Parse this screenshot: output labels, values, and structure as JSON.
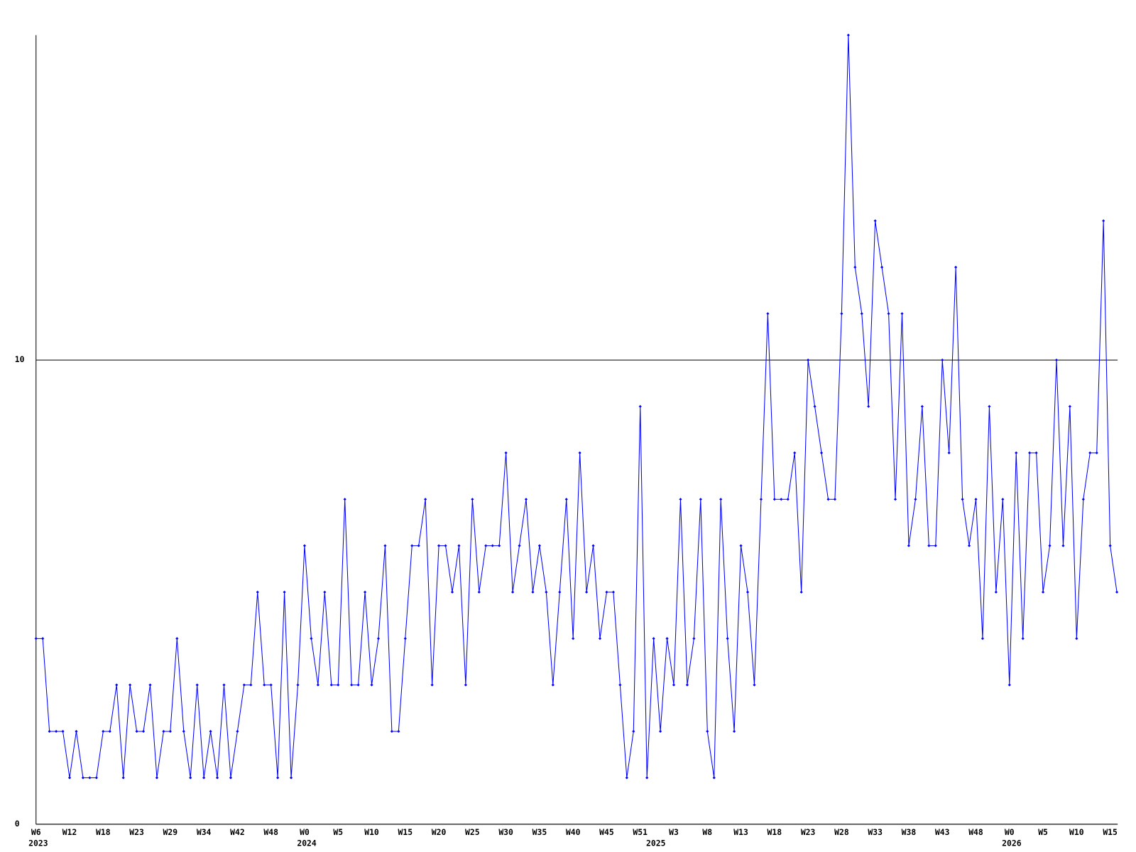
{
  "chart_data": {
    "type": "line",
    "categories": [
      "W6",
      null,
      null,
      null,
      null,
      "W12",
      null,
      null,
      null,
      null,
      "W18",
      null,
      null,
      null,
      null,
      "W23",
      null,
      null,
      null,
      null,
      "W29",
      null,
      null,
      null,
      null,
      "W34",
      null,
      null,
      null,
      null,
      "W42",
      null,
      null,
      null,
      null,
      "W48",
      null,
      null,
      null,
      null,
      "W0",
      null,
      null,
      null,
      null,
      "W5",
      null,
      null,
      null,
      null,
      "W10",
      null,
      null,
      null,
      null,
      "W15",
      null,
      null,
      null,
      null,
      "W20",
      null,
      null,
      null,
      null,
      "W25",
      null,
      null,
      null,
      null,
      "W30",
      null,
      null,
      null,
      null,
      "W35",
      null,
      null,
      null,
      null,
      "W40",
      null,
      null,
      null,
      null,
      "W45",
      null,
      null,
      null,
      null,
      "W51",
      null,
      null,
      null,
      null,
      "W3",
      null,
      null,
      null,
      null,
      "W8",
      null,
      null,
      null,
      null,
      "W13",
      null,
      null,
      null,
      null,
      "W18",
      null,
      null,
      null,
      null,
      "W23",
      null,
      null,
      null,
      null,
      "W28",
      null,
      null,
      null,
      null,
      "W33",
      null,
      null,
      null,
      null,
      "W38",
      null,
      null,
      null,
      null,
      "W43",
      null,
      null,
      null,
      null,
      "W48",
      null,
      null,
      null,
      null,
      "W0",
      null,
      null,
      null,
      null,
      "W5",
      null,
      null,
      null,
      null,
      "W10",
      null,
      null,
      null,
      null,
      "W15",
      null
    ],
    "years": [
      "2023",
      null,
      null,
      null,
      null,
      null,
      null,
      null,
      null,
      null,
      null,
      null,
      null,
      null,
      null,
      null,
      null,
      null,
      null,
      null,
      null,
      null,
      null,
      null,
      null,
      null,
      null,
      null,
      null,
      null,
      null,
      null,
      null,
      null,
      null,
      null,
      null,
      null,
      null,
      null,
      "2024",
      null,
      null,
      null,
      null,
      null,
      null,
      null,
      null,
      null,
      null,
      null,
      null,
      null,
      null,
      null,
      null,
      null,
      null,
      null,
      null,
      null,
      null,
      null,
      null,
      null,
      null,
      null,
      null,
      null,
      null,
      null,
      null,
      null,
      null,
      null,
      null,
      null,
      null,
      null,
      null,
      null,
      null,
      null,
      null,
      null,
      null,
      null,
      null,
      null,
      null,
      null,
      "2025",
      null,
      null,
      null,
      null,
      null,
      null,
      null,
      null,
      null,
      null,
      null,
      null,
      null,
      null,
      null,
      null,
      null,
      null,
      null,
      null,
      null,
      null,
      null,
      null,
      null,
      null,
      null,
      null,
      null,
      null,
      null,
      null,
      null,
      null,
      null,
      null,
      null,
      null,
      null,
      null,
      null,
      null,
      null,
      null,
      null,
      null,
      null,
      null,
      null,
      null,
      null,
      null,
      "2026",
      null,
      null,
      null,
      null,
      null,
      null,
      null,
      null,
      null,
      null,
      null,
      null,
      null,
      null,
      null,
      null
    ],
    "series": [
      {
        "color": "#0000ff",
        "values": [
          4,
          4,
          2,
          2,
          2,
          1,
          2,
          1,
          1,
          1,
          2,
          2,
          3,
          1,
          3,
          2,
          2,
          3,
          1,
          2,
          2,
          4,
          2,
          1,
          3,
          1,
          2,
          1,
          3,
          1,
          2,
          3,
          3,
          5,
          3,
          3,
          1,
          5,
          1,
          3,
          6,
          4,
          3,
          5,
          3,
          3,
          7,
          3,
          3,
          5,
          3,
          4,
          6,
          2,
          2,
          4,
          6,
          6,
          7,
          3,
          6,
          6,
          5,
          6,
          3,
          7,
          5,
          6,
          6,
          6,
          8,
          5,
          6,
          7,
          5,
          6,
          5,
          3,
          5,
          7,
          4,
          8,
          5,
          6,
          4,
          5,
          5,
          3,
          1,
          2,
          9,
          1,
          4,
          2,
          4,
          3,
          7,
          3,
          4,
          7,
          2,
          1,
          7,
          4,
          2,
          6,
          5,
          3,
          7,
          11,
          7,
          7,
          7,
          8,
          5,
          10,
          9,
          8,
          7,
          7,
          11,
          17,
          12,
          11,
          9,
          13,
          12,
          11,
          7,
          11,
          6,
          7,
          9,
          6,
          6,
          10,
          8,
          12,
          7,
          6,
          7,
          4,
          9,
          5,
          7,
          3,
          8,
          4,
          8,
          8,
          5,
          6,
          10,
          6,
          9,
          4,
          7,
          8,
          8,
          13,
          6,
          5
        ]
      }
    ],
    "ylim": [
      0,
      17
    ],
    "yticks": [
      0,
      10
    ],
    "grid": true
  }
}
